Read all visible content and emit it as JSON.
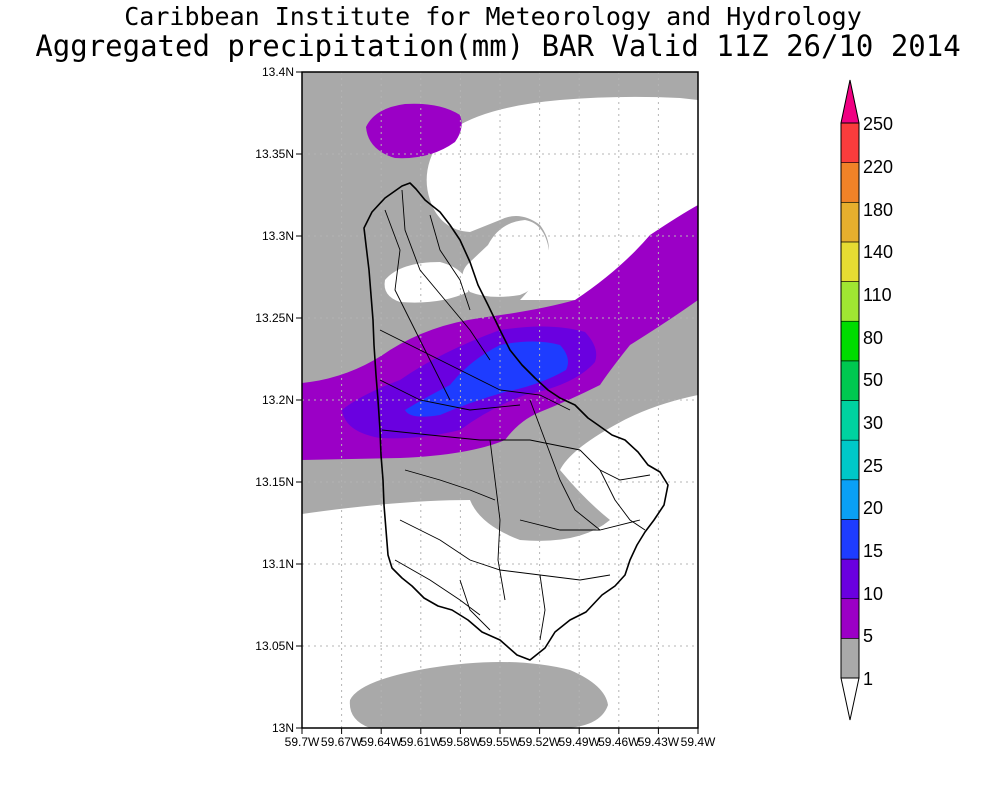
{
  "header": {
    "institute": "Caribbean Institute for Meteorology and Hydrology",
    "product": "Aggregated precipitation(mm) BAR Valid 11Z 26/10 2014"
  },
  "map": {
    "lat_labels": [
      "13.4N",
      "13.35N",
      "13.3N",
      "13.25N",
      "13.2N",
      "13.15N",
      "13.1N",
      "13.05N",
      "13N"
    ],
    "lon_labels": [
      "59.7W",
      "59.67W",
      "59.64W",
      "59.61W",
      "59.58W",
      "59.55W",
      "59.52W",
      "59.49W",
      "59.46W",
      "59.43W",
      "59.4W"
    ]
  },
  "colorbar": {
    "levels": [
      "1",
      "5",
      "10",
      "15",
      "20",
      "25",
      "30",
      "50",
      "80",
      "110",
      "140",
      "180",
      "220",
      "250"
    ],
    "colors": [
      "#a9a9a9",
      "#9b00c6",
      "#6a00e0",
      "#1e3cff",
      "#0aa0f5",
      "#00c8c8",
      "#00d2a0",
      "#00c850",
      "#00dc00",
      "#a0e632",
      "#e6dc32",
      "#e6af2d",
      "#f08228",
      "#fa3c3c"
    ],
    "over_color": "#f00082",
    "under_color": "#ffffff"
  }
}
